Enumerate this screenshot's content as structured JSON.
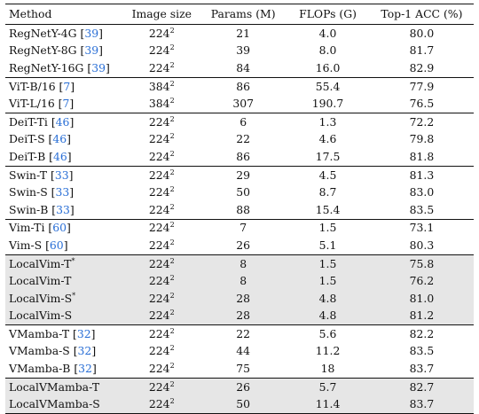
{
  "table": {
    "columns": [
      "Method",
      "Image size",
      "Params (M)",
      "FLOPs (G)",
      "Top-1 ACC (%)"
    ],
    "groups": [
      {
        "shaded": false,
        "rows": [
          {
            "method": "RegNetY-4G",
            "ref": "39",
            "star": false,
            "image_base": "224",
            "image_exp": "2",
            "params": "21",
            "flops": "4.0",
            "acc": "80.0"
          },
          {
            "method": "RegNetY-8G",
            "ref": "39",
            "star": false,
            "image_base": "224",
            "image_exp": "2",
            "params": "39",
            "flops": "8.0",
            "acc": "81.7"
          },
          {
            "method": "RegNetY-16G",
            "ref": "39",
            "star": false,
            "image_base": "224",
            "image_exp": "2",
            "params": "84",
            "flops": "16.0",
            "acc": "82.9"
          }
        ]
      },
      {
        "shaded": false,
        "rows": [
          {
            "method": "ViT-B/16",
            "ref": "7",
            "star": false,
            "image_base": "384",
            "image_exp": "2",
            "params": "86",
            "flops": "55.4",
            "acc": "77.9"
          },
          {
            "method": "ViT-L/16",
            "ref": "7",
            "star": false,
            "image_base": "384",
            "image_exp": "2",
            "params": "307",
            "flops": "190.7",
            "acc": "76.5"
          }
        ]
      },
      {
        "shaded": false,
        "rows": [
          {
            "method": "DeiT-Ti",
            "ref": "46",
            "star": false,
            "image_base": "224",
            "image_exp": "2",
            "params": "6",
            "flops": "1.3",
            "acc": "72.2"
          },
          {
            "method": "DeiT-S",
            "ref": "46",
            "star": false,
            "image_base": "224",
            "image_exp": "2",
            "params": "22",
            "flops": "4.6",
            "acc": "79.8"
          },
          {
            "method": "DeiT-B",
            "ref": "46",
            "star": false,
            "image_base": "224",
            "image_exp": "2",
            "params": "86",
            "flops": "17.5",
            "acc": "81.8"
          }
        ]
      },
      {
        "shaded": false,
        "rows": [
          {
            "method": "Swin-T",
            "ref": "33",
            "star": false,
            "image_base": "224",
            "image_exp": "2",
            "params": "29",
            "flops": "4.5",
            "acc": "81.3"
          },
          {
            "method": "Swin-S",
            "ref": "33",
            "star": false,
            "image_base": "224",
            "image_exp": "2",
            "params": "50",
            "flops": "8.7",
            "acc": "83.0"
          },
          {
            "method": "Swin-B",
            "ref": "33",
            "star": false,
            "image_base": "224",
            "image_exp": "2",
            "params": "88",
            "flops": "15.4",
            "acc": "83.5"
          }
        ]
      },
      {
        "shaded": false,
        "rows": [
          {
            "method": "Vim-Ti",
            "ref": "60",
            "star": false,
            "image_base": "224",
            "image_exp": "2",
            "params": "7",
            "flops": "1.5",
            "acc": "73.1"
          },
          {
            "method": "Vim-S",
            "ref": "60",
            "star": false,
            "image_base": "224",
            "image_exp": "2",
            "params": "26",
            "flops": "5.1",
            "acc": "80.3"
          }
        ]
      },
      {
        "shaded": true,
        "rows": [
          {
            "method": "LocalVim-T",
            "ref": "",
            "star": true,
            "image_base": "224",
            "image_exp": "2",
            "params": "8",
            "flops": "1.5",
            "acc": "75.8"
          },
          {
            "method": "LocalVim-T",
            "ref": "",
            "star": false,
            "image_base": "224",
            "image_exp": "2",
            "params": "8",
            "flops": "1.5",
            "acc": "76.2"
          },
          {
            "method": "LocalVim-S",
            "ref": "",
            "star": true,
            "image_base": "224",
            "image_exp": "2",
            "params": "28",
            "flops": "4.8",
            "acc": "81.0"
          },
          {
            "method": "LocalVim-S",
            "ref": "",
            "star": false,
            "image_base": "224",
            "image_exp": "2",
            "params": "28",
            "flops": "4.8",
            "acc": "81.2"
          }
        ]
      },
      {
        "shaded": false,
        "rows": [
          {
            "method": "VMamba-T",
            "ref": "32",
            "star": false,
            "image_base": "224",
            "image_exp": "2",
            "params": "22",
            "flops": "5.6",
            "acc": "82.2"
          },
          {
            "method": "VMamba-S",
            "ref": "32",
            "star": false,
            "image_base": "224",
            "image_exp": "2",
            "params": "44",
            "flops": "11.2",
            "acc": "83.5"
          },
          {
            "method": "VMamba-B",
            "ref": "32",
            "star": false,
            "image_base": "224",
            "image_exp": "2",
            "params": "75",
            "flops": "18",
            "acc": "83.7"
          }
        ]
      },
      {
        "shaded": true,
        "rows": [
          {
            "method": "LocalVMamba-T",
            "ref": "",
            "star": false,
            "image_base": "224",
            "image_exp": "2",
            "params": "26",
            "flops": "5.7",
            "acc": "82.7"
          },
          {
            "method": "LocalVMamba-S",
            "ref": "",
            "star": false,
            "image_base": "224",
            "image_exp": "2",
            "params": "50",
            "flops": "11.4",
            "acc": "83.7"
          }
        ]
      }
    ]
  }
}
